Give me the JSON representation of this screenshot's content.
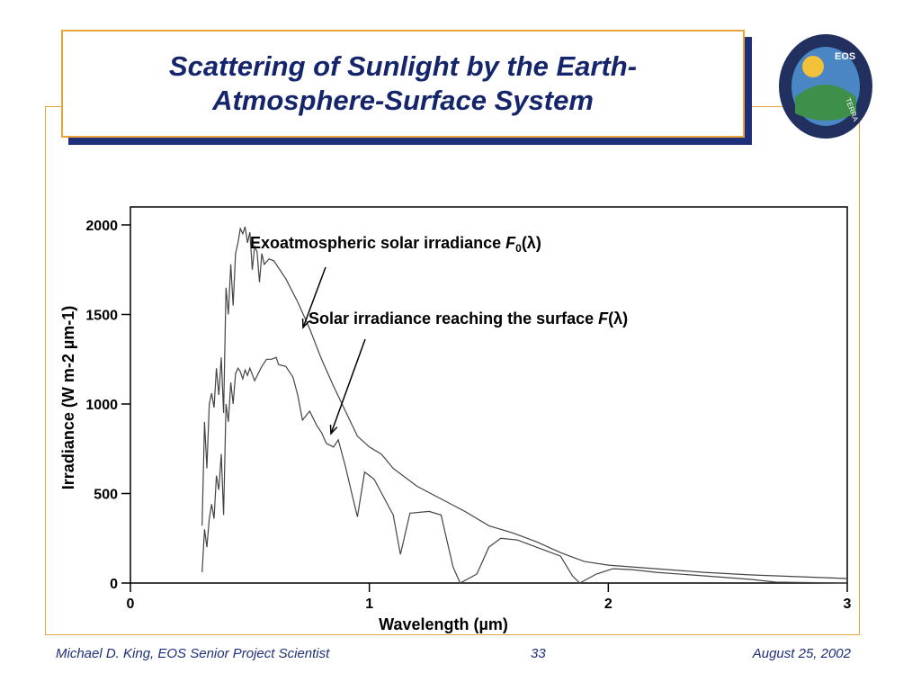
{
  "slide": {
    "title_line1": "Scattering of Sunlight by the Earth-",
    "title_line2": "Atmosphere-Surface System",
    "logo_text": "EOS",
    "logo_ring": "TERRA",
    "footer_author": "Michael D. King, EOS Senior Project Scientist",
    "footer_page": "33",
    "footer_date": "August 25, 2002",
    "colors": {
      "title": "#15256b",
      "accent": "#e8a33a",
      "shadow": "#1f2f7a"
    }
  },
  "chart_data": {
    "type": "line",
    "xlabel": "Wavelength (µm)",
    "ylabel": "Irradiance (W m-2 µm-1)",
    "xlim": [
      0,
      3
    ],
    "ylim": [
      0,
      2000
    ],
    "x_ticks": [
      0,
      1,
      2,
      3
    ],
    "y_ticks": [
      0,
      500,
      1000,
      1500,
      2000
    ],
    "grid": false,
    "series": [
      {
        "name": "Exoatmospheric solar irradiance F0(λ)",
        "points": [
          [
            0.3,
            320
          ],
          [
            0.31,
            900
          ],
          [
            0.32,
            640
          ],
          [
            0.33,
            1000
          ],
          [
            0.34,
            1060
          ],
          [
            0.35,
            980
          ],
          [
            0.36,
            1200
          ],
          [
            0.37,
            1050
          ],
          [
            0.38,
            1260
          ],
          [
            0.39,
            950
          ],
          [
            0.4,
            1650
          ],
          [
            0.41,
            1500
          ],
          [
            0.42,
            1780
          ],
          [
            0.43,
            1550
          ],
          [
            0.44,
            1840
          ],
          [
            0.45,
            1900
          ],
          [
            0.46,
            1980
          ],
          [
            0.47,
            1950
          ],
          [
            0.48,
            1990
          ],
          [
            0.49,
            1900
          ],
          [
            0.5,
            1960
          ],
          [
            0.51,
            1750
          ],
          [
            0.52,
            1880
          ],
          [
            0.53,
            1850
          ],
          [
            0.54,
            1680
          ],
          [
            0.55,
            1840
          ],
          [
            0.56,
            1780
          ],
          [
            0.58,
            1810
          ],
          [
            0.6,
            1800
          ],
          [
            0.65,
            1700
          ],
          [
            0.7,
            1570
          ],
          [
            0.75,
            1420
          ],
          [
            0.8,
            1250
          ],
          [
            0.85,
            1100
          ],
          [
            0.9,
            960
          ],
          [
            0.95,
            820
          ],
          [
            1.0,
            760
          ],
          [
            1.05,
            720
          ],
          [
            1.1,
            640
          ],
          [
            1.2,
            540
          ],
          [
            1.3,
            470
          ],
          [
            1.4,
            400
          ],
          [
            1.5,
            320
          ],
          [
            1.6,
            280
          ],
          [
            1.7,
            230
          ],
          [
            1.8,
            170
          ],
          [
            1.9,
            120
          ],
          [
            2.0,
            100
          ],
          [
            2.2,
            80
          ],
          [
            2.4,
            60
          ],
          [
            2.6,
            45
          ],
          [
            2.8,
            35
          ],
          [
            3.0,
            25
          ]
        ]
      },
      {
        "name": "Solar irradiance reaching the surface F(λ)",
        "points": [
          [
            0.3,
            60
          ],
          [
            0.31,
            300
          ],
          [
            0.32,
            200
          ],
          [
            0.33,
            360
          ],
          [
            0.34,
            440
          ],
          [
            0.35,
            360
          ],
          [
            0.36,
            600
          ],
          [
            0.37,
            520
          ],
          [
            0.38,
            720
          ],
          [
            0.39,
            380
          ],
          [
            0.4,
            1000
          ],
          [
            0.41,
            900
          ],
          [
            0.42,
            1120
          ],
          [
            0.43,
            1000
          ],
          [
            0.44,
            1170
          ],
          [
            0.45,
            1200
          ],
          [
            0.46,
            1180
          ],
          [
            0.47,
            1140
          ],
          [
            0.48,
            1190
          ],
          [
            0.49,
            1160
          ],
          [
            0.5,
            1200
          ],
          [
            0.52,
            1130
          ],
          [
            0.55,
            1210
          ],
          [
            0.57,
            1250
          ],
          [
            0.59,
            1250
          ],
          [
            0.61,
            1260
          ],
          [
            0.62,
            1220
          ],
          [
            0.65,
            1210
          ],
          [
            0.68,
            1150
          ],
          [
            0.7,
            1050
          ],
          [
            0.72,
            910
          ],
          [
            0.75,
            960
          ],
          [
            0.78,
            880
          ],
          [
            0.8,
            840
          ],
          [
            0.82,
            780
          ],
          [
            0.85,
            760
          ],
          [
            0.87,
            800
          ],
          [
            0.9,
            650
          ],
          [
            0.93,
            480
          ],
          [
            0.95,
            370
          ],
          [
            0.98,
            620
          ],
          [
            1.02,
            580
          ],
          [
            1.06,
            480
          ],
          [
            1.1,
            380
          ],
          [
            1.13,
            160
          ],
          [
            1.17,
            390
          ],
          [
            1.25,
            400
          ],
          [
            1.3,
            380
          ],
          [
            1.35,
            90
          ],
          [
            1.38,
            0
          ],
          [
            1.45,
            50
          ],
          [
            1.5,
            200
          ],
          [
            1.55,
            250
          ],
          [
            1.62,
            240
          ],
          [
            1.7,
            200
          ],
          [
            1.8,
            150
          ],
          [
            1.85,
            40
          ],
          [
            1.88,
            0
          ],
          [
            1.95,
            50
          ],
          [
            2.02,
            80
          ],
          [
            2.1,
            75
          ],
          [
            2.2,
            60
          ],
          [
            2.4,
            40
          ],
          [
            2.6,
            20
          ],
          [
            2.7,
            5
          ],
          [
            3.0,
            0
          ]
        ]
      }
    ],
    "annotations": [
      {
        "text_main": "Exoatmospheric solar irradiance ",
        "symbol": "F",
        "subscript": "0",
        "param": "(λ)"
      },
      {
        "text_main": "Solar irradiance reaching the surface ",
        "symbol": "F",
        "subscript": "",
        "param": "(λ)"
      }
    ]
  }
}
